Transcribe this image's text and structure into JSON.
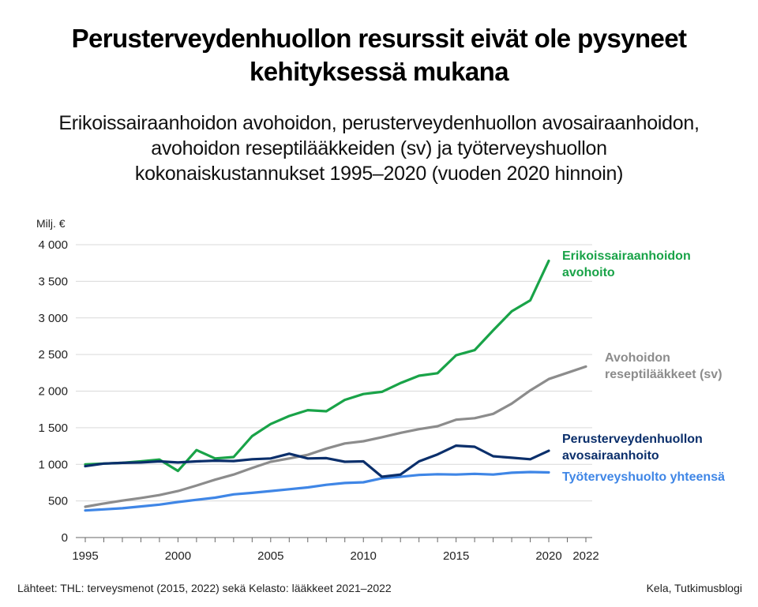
{
  "header": {
    "title_lines": [
      "Perusterveydenhuollon resurssit eivät ole pysyneet",
      "kehityksessä mukana"
    ],
    "subtitle_lines": [
      "Erikoissairaanhoidon avohoidon, perusterveydenhuollon avosairaanhoidon,",
      "avohoidon reseptilääkkeiden (sv) ja työterveyshuollon",
      "kokonaiskustannukset 1995–2020  (vuoden 2020 hinnoin)"
    ]
  },
  "footer": {
    "source": "Lähteet: THL: terveysmenot (2015, 2022) sekä Kelasto: lääkkeet 2021–2022",
    "credit": "Kela, Tutkimusblogi"
  },
  "chart_data": {
    "type": "line",
    "ylabel": "Milj. €",
    "ylim": [
      0,
      4000
    ],
    "yticks": [
      0,
      500,
      1000,
      1500,
      2000,
      2500,
      3000,
      3500,
      4000
    ],
    "ytick_labels": [
      "0",
      "500",
      "1 000",
      "1 500",
      "2 000",
      "2 500",
      "3 000",
      "3 500",
      "4 000"
    ],
    "xlim": [
      1995,
      2022
    ],
    "xticks": [
      1995,
      2000,
      2005,
      2010,
      2015,
      2020,
      2022
    ],
    "xtick_labels": [
      "1995",
      "2000",
      "2005",
      "2010",
      "2015",
      "2020",
      "2022"
    ],
    "grid": "horizontal",
    "series": [
      {
        "name": "Erikoissairaanhoidon avohoito",
        "label_lines": [
          "Erikoissairaanhoidon",
          "avohoito"
        ],
        "color": "#19a348",
        "x": [
          1995,
          1996,
          1997,
          1998,
          1999,
          2000,
          2001,
          2002,
          2003,
          2004,
          2005,
          2006,
          2007,
          2008,
          2009,
          2010,
          2011,
          2012,
          2013,
          2014,
          2015,
          2016,
          2017,
          2018,
          2019,
          2020
        ],
        "values": [
          1000,
          1010,
          1020,
          1040,
          1065,
          910,
          1195,
          1080,
          1100,
          1385,
          1550,
          1660,
          1740,
          1725,
          1880,
          1960,
          1990,
          2110,
          2210,
          2245,
          2490,
          2560,
          2830,
          3090,
          3240,
          3780
        ]
      },
      {
        "name": "Avohoidon reseptilääkkeet (sv)",
        "label_lines": [
          "Avohoidon",
          "reseptilääkkeet (sv)"
        ],
        "color": "#8c8c8c",
        "x": [
          1995,
          1996,
          1997,
          1998,
          1999,
          2000,
          2001,
          2002,
          2003,
          2004,
          2005,
          2006,
          2007,
          2008,
          2009,
          2010,
          2011,
          2012,
          2013,
          2014,
          2015,
          2016,
          2017,
          2018,
          2019,
          2020,
          2021,
          2022
        ],
        "values": [
          420,
          465,
          505,
          540,
          580,
          635,
          710,
          790,
          860,
          950,
          1035,
          1080,
          1130,
          1215,
          1285,
          1315,
          1370,
          1430,
          1480,
          1520,
          1610,
          1630,
          1690,
          1830,
          2010,
          2165,
          2250,
          2335
        ]
      },
      {
        "name": "Perusterveydenhuollon avosairaanhoito",
        "label_lines": [
          "Perusterveydenhuollon",
          "avosairaanhoito"
        ],
        "color": "#0b2f6b",
        "x": [
          1995,
          1996,
          1997,
          1998,
          1999,
          2000,
          2001,
          2002,
          2003,
          2004,
          2005,
          2006,
          2007,
          2008,
          2009,
          2010,
          2011,
          2012,
          2013,
          2014,
          2015,
          2016,
          2017,
          2018,
          2019,
          2020
        ],
        "values": [
          975,
          1010,
          1020,
          1025,
          1040,
          1025,
          1040,
          1050,
          1045,
          1070,
          1080,
          1145,
          1080,
          1085,
          1035,
          1040,
          830,
          860,
          1040,
          1135,
          1255,
          1240,
          1110,
          1090,
          1070,
          1185
        ]
      },
      {
        "name": "Työterveyshuolto yhteensä",
        "label_lines": [
          "Työterveyshuolto yhteensä"
        ],
        "color": "#3f86e6",
        "x": [
          1995,
          1996,
          1997,
          1998,
          1999,
          2000,
          2001,
          2002,
          2003,
          2004,
          2005,
          2006,
          2007,
          2008,
          2009,
          2010,
          2011,
          2012,
          2013,
          2014,
          2015,
          2016,
          2017,
          2018,
          2019,
          2020
        ],
        "values": [
          370,
          385,
          400,
          425,
          450,
          485,
          515,
          545,
          590,
          610,
          635,
          660,
          685,
          720,
          745,
          755,
          810,
          830,
          855,
          865,
          860,
          870,
          860,
          885,
          895,
          890
        ]
      }
    ]
  }
}
